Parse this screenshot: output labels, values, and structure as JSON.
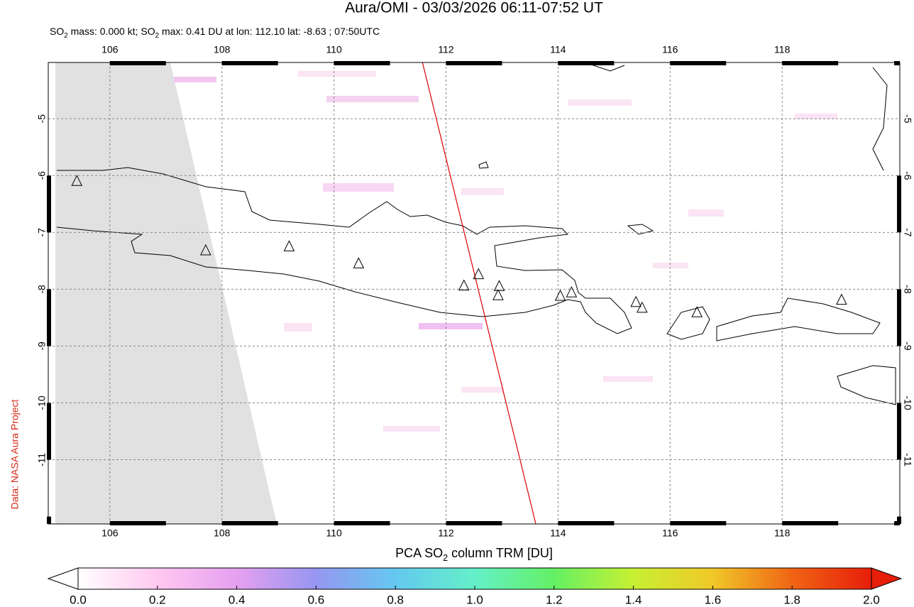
{
  "header": {
    "title": "Aura/OMI - 03/03/2026 06:11-07:52 UT",
    "subtitle": [
      "SO",
      "2",
      " mass: 0.000 kt; SO",
      "2",
      " max: 0.41 DU at lon: 112.10 lat: -8.63 ; 07:50UTC"
    ]
  },
  "credit": "Data: NASA Aura Project",
  "map": {
    "xlim": [
      104.9,
      120.1
    ],
    "ylim": [
      -12.13,
      -4.01
    ],
    "xticks": [
      106,
      108,
      110,
      112,
      114,
      116,
      118
    ],
    "yticks": [
      -5,
      -6,
      -7,
      -8,
      -9,
      -10,
      -11
    ],
    "grid": true,
    "orbit": {
      "lon": [
        111.58,
        113.62
      ],
      "lat": [
        -4.01,
        -12.2
      ],
      "color": "#dd0000"
    },
    "volcanoes": {
      "lon": [
        105.41,
        107.71,
        109.2,
        110.44,
        112.32,
        112.58,
        112.95,
        112.93,
        114.04,
        114.24,
        115.39,
        115.5,
        116.48,
        119.06
      ],
      "lat": [
        -6.1,
        -7.32,
        -7.25,
        -7.55,
        -7.94,
        -7.74,
        -7.95,
        -8.11,
        -8.12,
        -8.06,
        -8.23,
        -8.33,
        -8.41,
        -8.19
      ]
    }
  },
  "colorbar": {
    "label": [
      "PCA SO",
      "2",
      " column TRM [DU]"
    ],
    "lim": [
      0,
      2
    ],
    "ticks": [
      {
        "value": 0,
        "label": "0.0"
      },
      {
        "value": 0.2,
        "label": "0.2"
      },
      {
        "value": 0.4,
        "label": "0.4"
      },
      {
        "value": 0.6,
        "label": "0.6"
      },
      {
        "value": 0.8,
        "label": "0.8"
      },
      {
        "value": 1.0,
        "label": "1.0"
      },
      {
        "value": 1.2,
        "label": "1.2"
      },
      {
        "value": 1.4,
        "label": "1.4"
      },
      {
        "value": 1.6,
        "label": "1.6"
      },
      {
        "value": 1.8,
        "label": "1.8"
      },
      {
        "value": 2.0,
        "label": "2.0"
      }
    ],
    "colormap": [
      "#ffffff",
      "#ffc8f0",
      "#e6a0f0",
      "#9696f0",
      "#64c8f0",
      "#64f0c8",
      "#64f064",
      "#c8f032",
      "#f0c828",
      "#f06414",
      "#e61e0a"
    ]
  }
}
